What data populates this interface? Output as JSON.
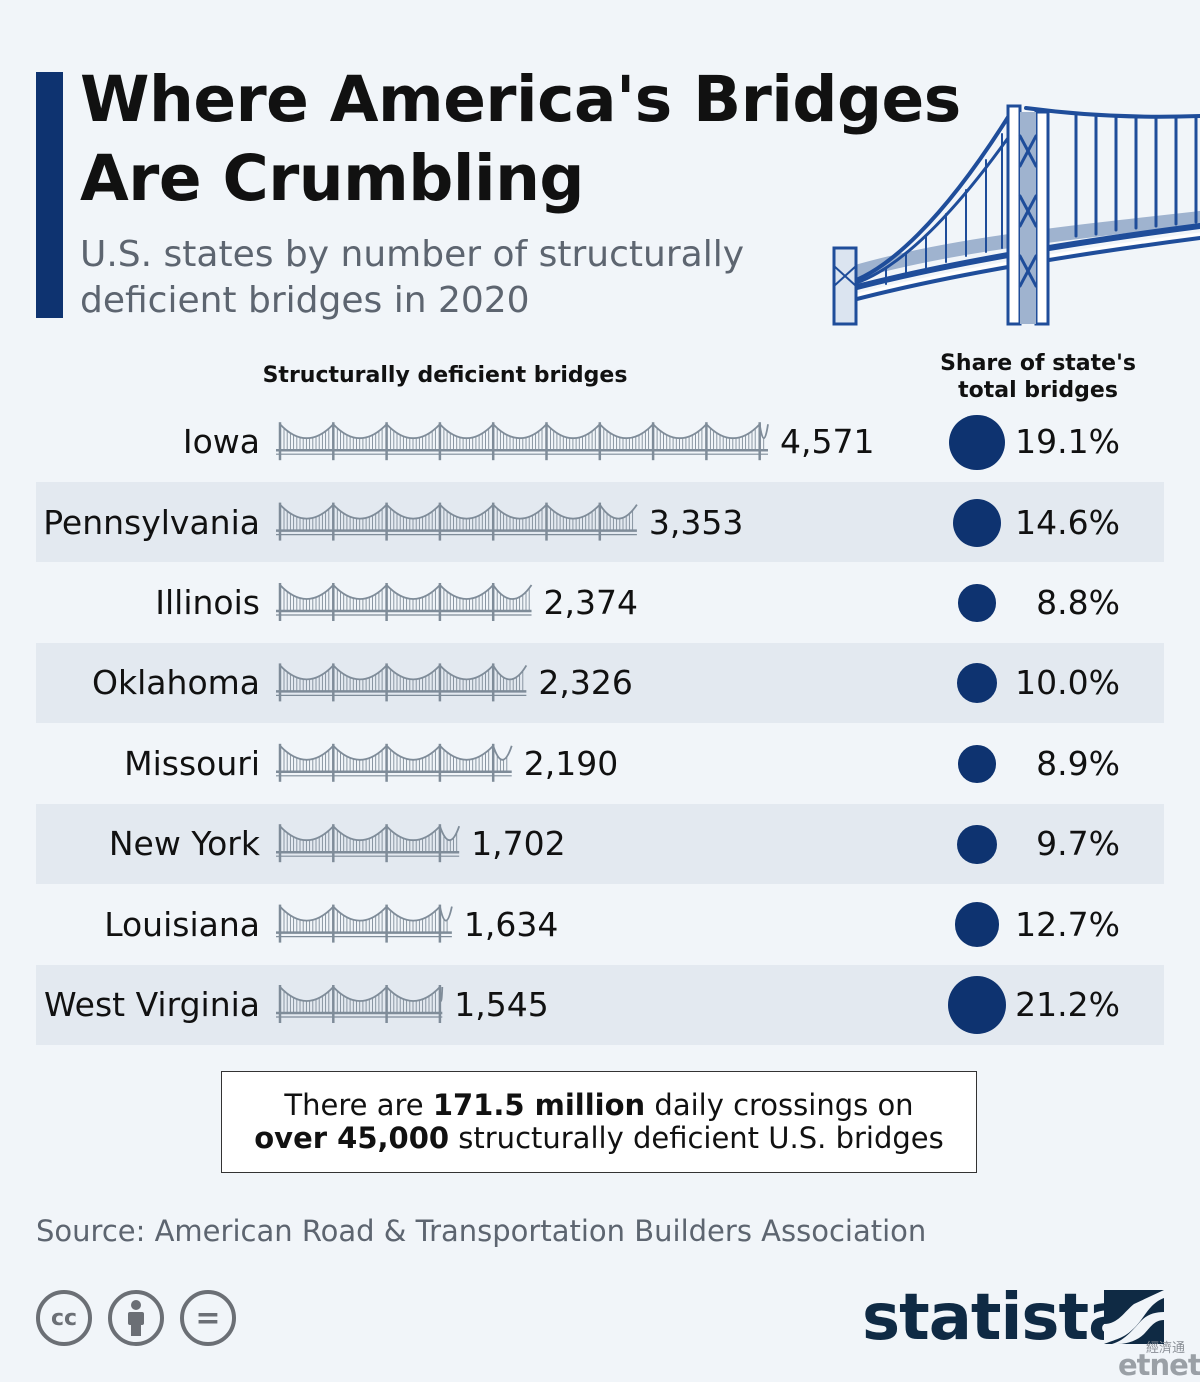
{
  "title": "Where America's Bridges Are Crumbling",
  "subtitle": "U.S. states by number of structurally deficient bridges in 2020",
  "colors": {
    "accent": "#0e3370",
    "bridge_icon": "#7f8c99",
    "bubble": "#0e3370",
    "row_band": "#e3e9f0",
    "background": "#f1f5f9",
    "statista_logo": "#0f2a44"
  },
  "column_headers": {
    "bridges": "Structurally deficient bridges",
    "share": "Share of state's total bridges"
  },
  "chart_data": {
    "type": "bar",
    "categories": [
      "Iowa",
      "Pennsylvania",
      "Illinois",
      "Oklahoma",
      "Missouri",
      "New York",
      "Louisiana",
      "West Virginia"
    ],
    "series": [
      {
        "name": "Structurally deficient bridges",
        "values": [
          4571,
          3353,
          2374,
          2326,
          2190,
          1702,
          1634,
          1545
        ],
        "labels": [
          "4,571",
          "3,353",
          "2,374",
          "2,326",
          "2,190",
          "1,702",
          "1,634",
          "1,545"
        ]
      },
      {
        "name": "Share of state's total bridges",
        "values": [
          19.1,
          14.6,
          8.8,
          10.0,
          8.9,
          9.7,
          12.7,
          21.2
        ],
        "labels": [
          "19.1%",
          "14.6%",
          "8.8%",
          "10.0%",
          "8.9%",
          "9.7%",
          "12.7%",
          "21.2%"
        ]
      }
    ],
    "marks": "bridge icons (pictogram bar) and circles sized by share",
    "grid": false,
    "legend": "none"
  },
  "callout": {
    "pre": "There are",
    "bold1": "171.5 million",
    "mid": "daily crossings on",
    "bold2": "over 45,000",
    "post": "structurally deficient U.S. bridges"
  },
  "source": "Source: American Road & Transportation Builders Association",
  "license_icons": [
    "cc-icon",
    "attribution-icon",
    "no-derivatives-icon"
  ],
  "license_glyphs": {
    "cc": "cc",
    "nd": "="
  },
  "brand": {
    "name": "statista",
    "watermark_cn": "經濟通",
    "watermark": "etnet"
  }
}
